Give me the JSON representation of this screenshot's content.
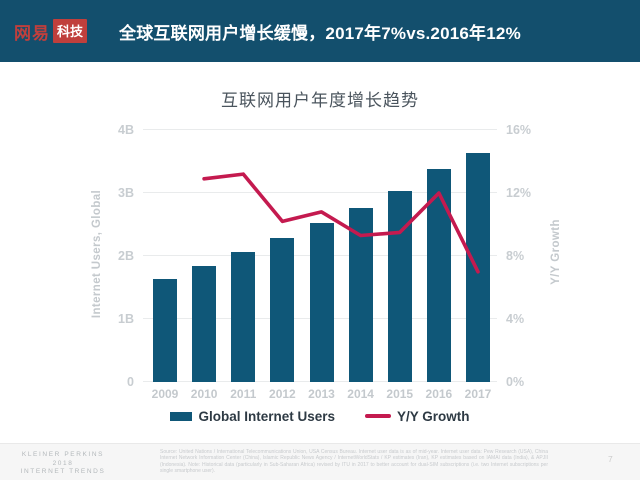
{
  "header": {
    "logo_brand": "网易",
    "logo_badge": "科技",
    "title": "全球互联网用户增长缓慢，2017年7%vs.2016年12%",
    "colors": {
      "banner_bg": "#134F6D",
      "logo_red": "#C03F3C"
    }
  },
  "chart_data": {
    "type": "bar",
    "title": "互联网用户年度增长趋势",
    "categories": [
      "2009",
      "2010",
      "2011",
      "2012",
      "2013",
      "2014",
      "2015",
      "2016",
      "2017"
    ],
    "series": [
      {
        "name": "Global Internet Users",
        "type": "bar",
        "axis": "left",
        "unit": "billions",
        "values": [
          1.63,
          1.84,
          2.06,
          2.29,
          2.52,
          2.76,
          3.03,
          3.38,
          3.63
        ]
      },
      {
        "name": "Y/Y Growth",
        "type": "line",
        "axis": "right",
        "unit": "%",
        "start_index": 1,
        "values": [
          12.9,
          13.2,
          10.2,
          10.8,
          9.3,
          9.5,
          12.0,
          7.0
        ]
      }
    ],
    "left_axis": {
      "label": "Internet Users, Global",
      "range": [
        0,
        4
      ],
      "ticks": [
        "0",
        "1B",
        "2B",
        "3B",
        "4B"
      ]
    },
    "right_axis": {
      "label": "Y/Y Growth",
      "range": [
        0,
        16
      ],
      "ticks": [
        "0%",
        "4%",
        "8%",
        "12%",
        "16%"
      ]
    },
    "grid": true,
    "legend_position": "bottom",
    "colors": {
      "bar": "#0F5778",
      "line": "#C41A4F"
    }
  },
  "footer": {
    "brand_lines": [
      "KLEINER PERKINS",
      "2018",
      "INTERNET TRENDS"
    ],
    "source_note": "Source: United Nations / International Telecommunications Union, USA Census Bureau. Internet user data is as of mid-year. Internet user data: Pew Research (USA), China Internet Network Information Center (China), Islamic Republic News Agency / InternetWorldStats / KP estimates (Iran), KP estimates based on IAMAI data (India), & APJII (Indonesia). Note: Historical data (particularly in Sub-Saharan Africa) revised by ITU in 2017 to better account for dual-SIM subscriptions (i.e. two Internet subscriptions per single smartphone user).",
    "page_number": "7"
  }
}
